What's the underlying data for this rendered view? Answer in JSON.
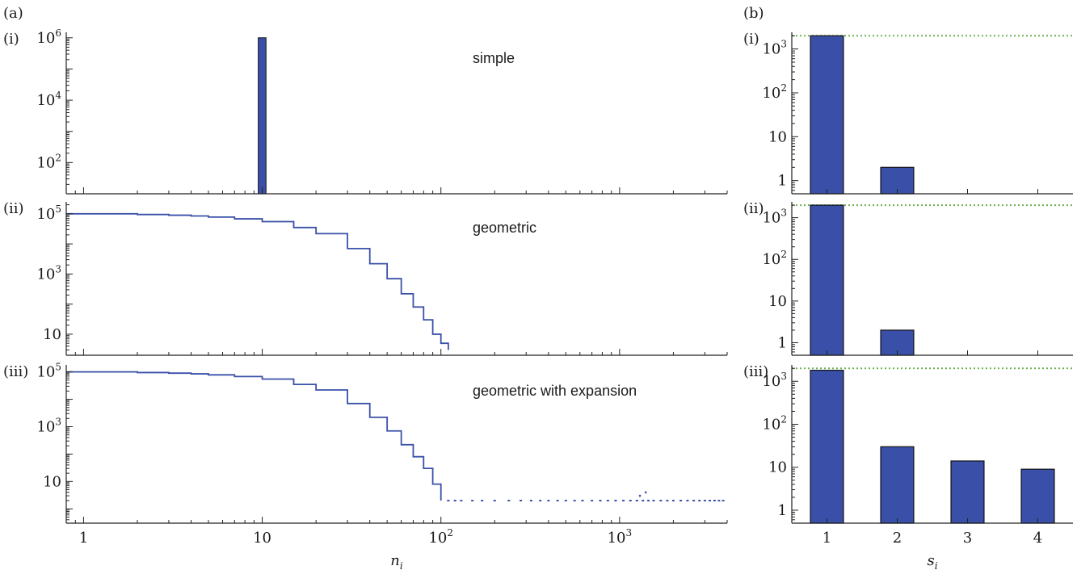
{
  "figure": {
    "label_a": "(a)",
    "label_b": "(b)"
  },
  "chart_data": [
    {
      "id": "a-i",
      "type": "bar",
      "panel_label": "(i)",
      "annotation": "simple",
      "xscale": "log",
      "yscale": "log",
      "xlim": [
        0.8,
        4000
      ],
      "ylim": [
        10,
        1500000
      ],
      "yticks": [
        {
          "value": 100,
          "base": "10",
          "exp": "2"
        },
        {
          "value": 10000,
          "base": "10",
          "exp": "4"
        },
        {
          "value": 1000000,
          "base": "10",
          "exp": "6"
        }
      ],
      "color": "#3a50a8",
      "bars": [
        {
          "x0": 9.5,
          "x1": 10.5,
          "value": 1000000
        }
      ]
    },
    {
      "id": "a-ii",
      "type": "line",
      "panel_label": "(ii)",
      "annotation": "geometric",
      "xscale": "log",
      "yscale": "log",
      "xlim": [
        0.8,
        4000
      ],
      "ylim": [
        2,
        250000
      ],
      "yticks": [
        {
          "value": 10,
          "base": "10",
          "exp": ""
        },
        {
          "value": 1000,
          "base": "10",
          "exp": "3"
        },
        {
          "value": 100000,
          "base": "10",
          "exp": "5"
        }
      ],
      "color": "#3a50a8",
      "series": [
        {
          "x": [
            0.8,
            1,
            2,
            3,
            4,
            5,
            7,
            10,
            15,
            20,
            30,
            40,
            50,
            60,
            70,
            80,
            90,
            100,
            110
          ],
          "y": [
            100000,
            100000,
            95000,
            90000,
            85000,
            78000,
            68000,
            55000,
            35000,
            22000,
            7000,
            2200,
            700,
            220,
            80,
            30,
            10,
            5,
            3
          ]
        }
      ]
    },
    {
      "id": "a-iii",
      "type": "line",
      "panel_label": "(iii)",
      "annotation": "geometric with expansion",
      "xscale": "log",
      "yscale": "log",
      "xlim": [
        0.8,
        4000
      ],
      "ylim": [
        0.3,
        180000
      ],
      "yticks": [
        {
          "value": 10,
          "base": "10",
          "exp": ""
        },
        {
          "value": 1000,
          "base": "10",
          "exp": "3"
        },
        {
          "value": 100000,
          "base": "10",
          "exp": "5"
        }
      ],
      "xticks": [
        {
          "value": 1,
          "base": "1",
          "exp": ""
        },
        {
          "value": 10,
          "base": "10",
          "exp": ""
        },
        {
          "value": 100,
          "base": "10",
          "exp": "2"
        },
        {
          "value": 1000,
          "base": "10",
          "exp": "3"
        }
      ],
      "xlabel_base": "n",
      "xlabel_sub": "i",
      "color": "#3a50a8",
      "series": [
        {
          "x": [
            0.8,
            1,
            2,
            3,
            4,
            5,
            7,
            10,
            15,
            20,
            30,
            40,
            50,
            60,
            70,
            80,
            90,
            100
          ],
          "y": [
            100000,
            100000,
            95000,
            90000,
            85000,
            78000,
            68000,
            55000,
            35000,
            22000,
            7000,
            2200,
            700,
            220,
            80,
            30,
            8,
            2
          ]
        }
      ],
      "scatter_y": 2,
      "scatter_x": [
        110,
        120,
        130,
        150,
        170,
        200,
        240,
        280,
        320,
        360,
        400,
        450,
        500,
        560,
        620,
        700,
        780,
        860,
        950,
        1050,
        1150,
        1250,
        1350,
        1450,
        1550,
        1700,
        1850,
        2000,
        2200,
        2400,
        2600,
        2800,
        3000,
        3200,
        3400,
        3600,
        3800
      ],
      "outliers": [
        {
          "x": 1300,
          "y": 3
        },
        {
          "x": 1400,
          "y": 4
        }
      ]
    },
    {
      "id": "b-i",
      "type": "bar",
      "panel_label": "(i)",
      "yscale": "log",
      "categories": [
        "1",
        "2",
        "3",
        "4"
      ],
      "values": [
        2000,
        2,
        0,
        0
      ],
      "ylim": [
        0.5,
        2400
      ],
      "yticks": [
        {
          "value": 1,
          "base": "1",
          "exp": ""
        },
        {
          "value": 10,
          "base": "10",
          "exp": ""
        },
        {
          "value": 100,
          "base": "10",
          "exp": "2"
        },
        {
          "value": 1000,
          "base": "10",
          "exp": "3"
        }
      ],
      "reference_line": 2000,
      "color": "#3a50a8"
    },
    {
      "id": "b-ii",
      "type": "bar",
      "panel_label": "(ii)",
      "yscale": "log",
      "categories": [
        "1",
        "2",
        "3",
        "4"
      ],
      "values": [
        2000,
        2,
        0,
        0
      ],
      "ylim": [
        0.5,
        2400
      ],
      "yticks": [
        {
          "value": 1,
          "base": "1",
          "exp": ""
        },
        {
          "value": 10,
          "base": "10",
          "exp": ""
        },
        {
          "value": 100,
          "base": "10",
          "exp": "2"
        },
        {
          "value": 1000,
          "base": "10",
          "exp": "3"
        }
      ],
      "reference_line": 2000,
      "color": "#3a50a8"
    },
    {
      "id": "b-iii",
      "type": "bar",
      "panel_label": "(iii)",
      "yscale": "log",
      "categories": [
        "1",
        "2",
        "3",
        "4"
      ],
      "values": [
        1800,
        30,
        14,
        9
      ],
      "ylim": [
        0.5,
        2400
      ],
      "yticks": [
        {
          "value": 1,
          "base": "1",
          "exp": ""
        },
        {
          "value": 10,
          "base": "10",
          "exp": ""
        },
        {
          "value": 100,
          "base": "10",
          "exp": "2"
        },
        {
          "value": 1000,
          "base": "10",
          "exp": "3"
        }
      ],
      "reference_line": 2000,
      "xlabel_base": "s",
      "xlabel_sub": "i",
      "color": "#3a50a8"
    }
  ],
  "colors": {
    "bar_fill": "#3a50a8",
    "line": "#3a50a8",
    "reference_line": "#6ab04c"
  }
}
